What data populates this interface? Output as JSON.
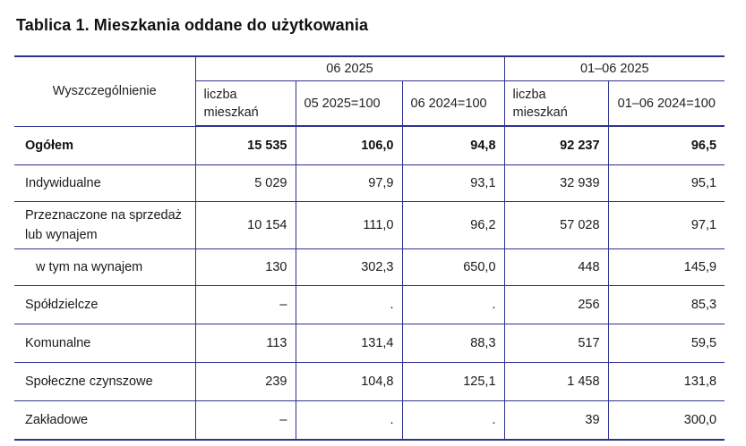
{
  "title": "Tablica 1. Mieszkania oddane do użytkowania",
  "header": {
    "row_label": "Wyszczególnienie",
    "group1": "06 2025",
    "group2": "01–06 2025",
    "g1_c1": "liczba mieszkań",
    "g1_c2": "05 2025=100",
    "g1_c3": "06 2024=100",
    "g2_c1": "liczba mieszkań",
    "g2_c2": "01–06 2024=100"
  },
  "rows": [
    {
      "label": "Ogółem",
      "v1": "15 535",
      "v2": "106,0",
      "v3": "94,8",
      "v4": "92 237",
      "v5": "96,5"
    },
    {
      "label": "Indywidualne",
      "v1": "5 029",
      "v2": "97,9",
      "v3": "93,1",
      "v4": "32 939",
      "v5": "95,1"
    },
    {
      "label": "Przeznaczone na sprzedaż lub wynajem",
      "v1": "10 154",
      "v2": "111,0",
      "v3": "96,2",
      "v4": "57 028",
      "v5": "97,1"
    },
    {
      "label": "w tym na wynajem",
      "v1": "130",
      "v2": "302,3",
      "v3": "650,0",
      "v4": "448",
      "v5": "145,9"
    },
    {
      "label": "Spółdzielcze",
      "v1": "–",
      "v2": ".",
      "v3": ".",
      "v4": "256",
      "v5": "85,3"
    },
    {
      "label": "Komunalne",
      "v1": "113",
      "v2": "131,4",
      "v3": "88,3",
      "v4": "517",
      "v5": "59,5"
    },
    {
      "label": "Społeczne czynszowe",
      "v1": "239",
      "v2": "104,8",
      "v3": "125,1",
      "v4": "1 458",
      "v5": "131,8"
    },
    {
      "label": "Zakładowe",
      "v1": "–",
      "v2": ".",
      "v3": ".",
      "v4": "39",
      "v5": "300,0"
    }
  ]
}
